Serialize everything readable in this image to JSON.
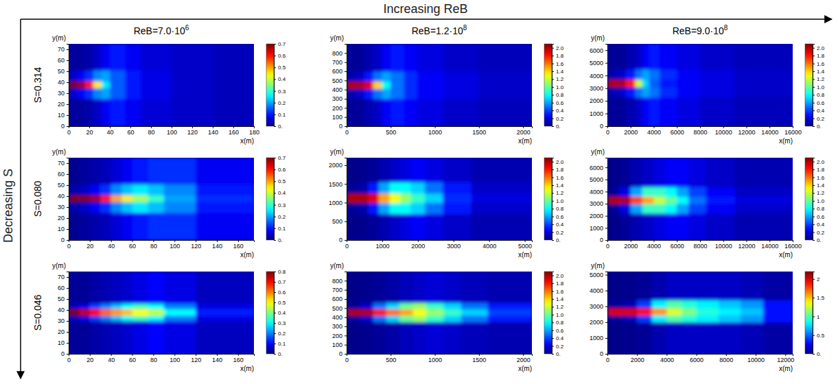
{
  "title": "Increasing ReB",
  "row_axis_label": "Decreasing S",
  "column_titles": [
    {
      "text": "ReB=7.0·10",
      "exponent": "6"
    },
    {
      "text": "ReB=1.2·10",
      "exponent": "8"
    },
    {
      "text": "ReB=9.0·10",
      "exponent": "8"
    }
  ],
  "row_titles": [
    "S=0.314",
    "S=0.080",
    "S=0.046"
  ],
  "chart_data": [
    {
      "type": "heatmap",
      "x_label": "x(m)",
      "y_label": "y(m)",
      "xlim": [
        0,
        180
      ],
      "xticks": [
        0,
        20,
        40,
        60,
        80,
        100,
        120,
        140,
        160,
        180
      ],
      "ylim": [
        0,
        75
      ],
      "yticks": [
        0,
        10,
        20,
        30,
        40,
        50,
        60,
        70
      ],
      "x_edges": [
        0,
        8,
        16,
        24,
        32,
        40,
        55,
        70,
        100,
        140,
        180
      ],
      "y_edges": [
        0,
        25,
        35,
        41,
        51,
        75
      ],
      "cells": [
        [
          0.02,
          0.02,
          0.03,
          0.05,
          0.08,
          0.1,
          0.08,
          0.06,
          0.05,
          0.04
        ],
        [
          0.05,
          0.08,
          0.12,
          0.18,
          0.2,
          0.15,
          0.1,
          0.07,
          0.05,
          0.04
        ],
        [
          0.7,
          0.68,
          0.6,
          0.45,
          0.25,
          0.15,
          0.1,
          0.07,
          0.05,
          0.04
        ],
        [
          0.05,
          0.08,
          0.12,
          0.18,
          0.2,
          0.15,
          0.1,
          0.07,
          0.05,
          0.04
        ],
        [
          0.02,
          0.02,
          0.03,
          0.05,
          0.08,
          0.1,
          0.08,
          0.06,
          0.05,
          0.04
        ]
      ],
      "colorbar_range": [
        0,
        0.7
      ],
      "colorbar_ticks": [
        {
          "value": 0,
          "label": "0."
        },
        0.1,
        0.2,
        0.3,
        0.4,
        0.5,
        0.6,
        0.7
      ]
    },
    {
      "type": "heatmap",
      "x_label": "x(m)",
      "y_label": "y(m)",
      "xlim": [
        0,
        2100
      ],
      "xticks": [
        0,
        500,
        1000,
        1500,
        2000
      ],
      "ylim": [
        0,
        900
      ],
      "yticks": [
        0,
        100,
        200,
        300,
        400,
        500,
        600,
        700,
        800
      ],
      "x_edges": [
        0,
        100,
        200,
        300,
        400,
        500,
        650,
        800,
        1100,
        1500,
        2100
      ],
      "y_edges": [
        0,
        300,
        410,
        490,
        600,
        900
      ],
      "cells": [
        [
          0.05,
          0.05,
          0.1,
          0.15,
          0.25,
          0.3,
          0.25,
          0.2,
          0.15,
          0.12
        ],
        [
          0.1,
          0.15,
          0.3,
          0.5,
          0.6,
          0.5,
          0.35,
          0.25,
          0.2,
          0.15
        ],
        [
          2.0,
          2.0,
          1.9,
          1.4,
          0.8,
          0.5,
          0.35,
          0.25,
          0.2,
          0.15
        ],
        [
          0.1,
          0.15,
          0.3,
          0.5,
          0.6,
          0.5,
          0.35,
          0.25,
          0.2,
          0.15
        ],
        [
          0.05,
          0.05,
          0.1,
          0.15,
          0.25,
          0.3,
          0.25,
          0.2,
          0.15,
          0.12
        ]
      ],
      "colorbar_range": [
        0,
        2.1
      ],
      "colorbar_ticks": [
        {
          "value": 0,
          "label": "0."
        },
        0.2,
        0.4,
        0.6,
        0.8,
        {
          "value": 1,
          "label": "1.0"
        },
        1.2,
        1.4,
        1.6,
        1.8,
        {
          "value": 2,
          "label": "2.0"
        }
      ]
    },
    {
      "type": "heatmap",
      "x_label": "x(m)",
      "y_label": "y(m)",
      "xlim": [
        0,
        16000
      ],
      "xticks": [
        0,
        2000,
        4000,
        6000,
        8000,
        10000,
        12000,
        14000,
        16000
      ],
      "ylim": [
        0,
        6500
      ],
      "yticks": [
        0,
        1000,
        2000,
        3000,
        4000,
        5000,
        6000
      ],
      "x_edges": [
        0,
        800,
        1600,
        2400,
        3000,
        3600,
        4500,
        6000,
        8000,
        11000,
        16000
      ],
      "y_edges": [
        0,
        2300,
        3100,
        3700,
        4500,
        6500
      ],
      "cells": [
        [
          0.05,
          0.05,
          0.1,
          0.15,
          0.25,
          0.3,
          0.25,
          0.2,
          0.15,
          0.12
        ],
        [
          0.1,
          0.15,
          0.3,
          0.5,
          0.6,
          0.5,
          0.35,
          0.25,
          0.2,
          0.15
        ],
        [
          2.0,
          2.0,
          1.8,
          1.2,
          0.7,
          0.45,
          0.3,
          0.25,
          0.2,
          0.15
        ],
        [
          0.1,
          0.15,
          0.3,
          0.5,
          0.6,
          0.5,
          0.35,
          0.25,
          0.2,
          0.15
        ],
        [
          0.05,
          0.05,
          0.1,
          0.15,
          0.25,
          0.3,
          0.25,
          0.2,
          0.15,
          0.12
        ]
      ],
      "colorbar_range": [
        0,
        2.1
      ],
      "colorbar_ticks": [
        {
          "value": 0,
          "label": "0."
        },
        0.2,
        0.4,
        0.6,
        0.8,
        {
          "value": 1,
          "label": "1.0"
        },
        1.2,
        1.4,
        1.6,
        1.8,
        {
          "value": 2,
          "label": "2.0"
        }
      ]
    },
    {
      "type": "heatmap",
      "x_label": "x(m)",
      "y_label": "y(m)",
      "xlim": [
        0,
        175
      ],
      "xticks": [
        0,
        20,
        40,
        60,
        80,
        100,
        120,
        140,
        160
      ],
      "ylim": [
        0,
        75
      ],
      "yticks": [
        0,
        10,
        20,
        30,
        40,
        50,
        60,
        70
      ],
      "x_edges": [
        0,
        10,
        20,
        30,
        40,
        50,
        60,
        75,
        90,
        120,
        175
      ],
      "y_edges": [
        0,
        25,
        35,
        41,
        51,
        75
      ],
      "cells": [
        [
          0.01,
          0.02,
          0.03,
          0.04,
          0.06,
          0.08,
          0.1,
          0.12,
          0.12,
          0.08
        ],
        [
          0.03,
          0.05,
          0.08,
          0.12,
          0.18,
          0.22,
          0.25,
          0.22,
          0.18,
          0.1
        ],
        [
          0.7,
          0.7,
          0.68,
          0.6,
          0.5,
          0.45,
          0.38,
          0.3,
          0.2,
          0.12
        ],
        [
          0.03,
          0.05,
          0.08,
          0.12,
          0.18,
          0.22,
          0.25,
          0.22,
          0.18,
          0.1
        ],
        [
          0.01,
          0.02,
          0.03,
          0.04,
          0.06,
          0.08,
          0.1,
          0.12,
          0.12,
          0.08
        ]
      ],
      "colorbar_range": [
        0,
        0.7
      ],
      "colorbar_ticks": [
        {
          "value": 0,
          "label": "0."
        },
        0.1,
        0.2,
        0.3,
        0.4,
        0.5,
        0.6,
        0.7
      ]
    },
    {
      "type": "heatmap",
      "x_label": "x(m)",
      "y_label": "y(m)",
      "xlim": [
        0,
        5200
      ],
      "xticks": [
        0,
        1000,
        2000,
        3000,
        4000,
        5000
      ],
      "ylim": [
        0,
        2200
      ],
      "yticks": [
        0,
        500,
        1000,
        1500,
        2000
      ],
      "x_edges": [
        0,
        300,
        600,
        900,
        1200,
        1500,
        1800,
        2200,
        2700,
        3500,
        5200
      ],
      "y_edges": [
        0,
        700,
        1000,
        1250,
        1550,
        2200
      ],
      "cells": [
        [
          0.02,
          0.03,
          0.05,
          0.1,
          0.15,
          0.2,
          0.25,
          0.2,
          0.15,
          0.1
        ],
        [
          0.05,
          0.08,
          0.3,
          0.6,
          0.8,
          0.8,
          0.7,
          0.5,
          0.3,
          0.15
        ],
        [
          2.0,
          2.0,
          1.9,
          1.5,
          1.3,
          1.1,
          0.9,
          0.7,
          0.35,
          0.2
        ],
        [
          0.05,
          0.08,
          0.3,
          0.6,
          0.8,
          0.8,
          0.7,
          0.5,
          0.3,
          0.15
        ],
        [
          0.02,
          0.03,
          0.05,
          0.1,
          0.15,
          0.2,
          0.25,
          0.2,
          0.15,
          0.1
        ]
      ],
      "colorbar_range": [
        0,
        2.1
      ],
      "colorbar_ticks": [
        {
          "value": 0,
          "label": "0."
        },
        0.2,
        0.4,
        0.6,
        0.8,
        {
          "value": 1,
          "label": "1.0"
        },
        1.2,
        1.4,
        1.6,
        1.8,
        {
          "value": 2,
          "label": "2.0"
        }
      ]
    },
    {
      "type": "heatmap",
      "x_label": "x(m)",
      "y_label": "y(m)",
      "xlim": [
        0,
        16000
      ],
      "xticks": [
        0,
        2000,
        4000,
        6000,
        8000,
        10000,
        12000,
        14000,
        16000
      ],
      "ylim": [
        0,
        6800
      ],
      "yticks": [
        0,
        1000,
        2000,
        3000,
        4000,
        5000,
        6000
      ],
      "x_edges": [
        0,
        1000,
        2000,
        3000,
        4000,
        5000,
        6000,
        7000,
        8500,
        11000,
        16000
      ],
      "y_edges": [
        0,
        2200,
        3000,
        3600,
        4400,
        6800
      ],
      "cells": [
        [
          0.02,
          0.05,
          0.1,
          0.15,
          0.2,
          0.25,
          0.25,
          0.2,
          0.15,
          0.1
        ],
        [
          0.05,
          0.2,
          0.6,
          0.9,
          0.9,
          0.8,
          0.6,
          0.4,
          0.25,
          0.15
        ],
        [
          2.0,
          2.0,
          1.7,
          1.5,
          1.2,
          1.0,
          0.8,
          0.5,
          0.3,
          0.2
        ],
        [
          0.05,
          0.2,
          0.6,
          0.9,
          0.9,
          0.8,
          0.6,
          0.4,
          0.25,
          0.15
        ],
        [
          0.02,
          0.05,
          0.1,
          0.15,
          0.2,
          0.25,
          0.25,
          0.2,
          0.15,
          0.1
        ]
      ],
      "colorbar_range": [
        0,
        2.1
      ],
      "colorbar_ticks": [
        {
          "value": 0,
          "label": "0."
        },
        0.2,
        0.4,
        0.6,
        0.8,
        {
          "value": 1,
          "label": "1.0"
        },
        1.2,
        1.4,
        1.6,
        1.8,
        {
          "value": 2,
          "label": "2.0"
        }
      ]
    },
    {
      "type": "heatmap",
      "x_label": "x(m)",
      "y_label": "y(m)",
      "xlim": [
        0,
        175
      ],
      "xticks": [
        0,
        20,
        40,
        60,
        80,
        100,
        120,
        140,
        160
      ],
      "ylim": [
        0,
        75
      ],
      "yticks": [
        0,
        10,
        20,
        30,
        40,
        50,
        60,
        70
      ],
      "x_edges": [
        0,
        10,
        20,
        30,
        40,
        50,
        60,
        75,
        90,
        120,
        175
      ],
      "y_edges": [
        0,
        30,
        35,
        41,
        46,
        75
      ],
      "cells": [
        [
          0.02,
          0.02,
          0.03,
          0.04,
          0.05,
          0.06,
          0.08,
          0.1,
          0.08,
          0.05
        ],
        [
          0.05,
          0.08,
          0.15,
          0.2,
          0.25,
          0.3,
          0.35,
          0.3,
          0.2,
          0.08
        ],
        [
          0.8,
          0.75,
          0.7,
          0.62,
          0.58,
          0.55,
          0.5,
          0.45,
          0.3,
          0.12
        ],
        [
          0.05,
          0.08,
          0.15,
          0.2,
          0.25,
          0.3,
          0.35,
          0.3,
          0.2,
          0.08
        ],
        [
          0.02,
          0.02,
          0.03,
          0.04,
          0.05,
          0.06,
          0.08,
          0.1,
          0.08,
          0.05
        ]
      ],
      "colorbar_range": [
        0,
        0.8
      ],
      "colorbar_ticks": [
        {
          "value": 0,
          "label": "0."
        },
        0.1,
        0.2,
        0.3,
        0.4,
        0.5,
        0.6,
        0.7,
        0.8
      ]
    },
    {
      "type": "heatmap",
      "x_label": "x(m)",
      "y_label": "y(m)",
      "xlim": [
        0,
        2100
      ],
      "xticks": [
        0,
        500,
        1000,
        1500,
        2000
      ],
      "ylim": [
        0,
        900
      ],
      "yticks": [
        0,
        100,
        200,
        300,
        400,
        500,
        600,
        700,
        800
      ],
      "x_edges": [
        0,
        150,
        300,
        450,
        600,
        750,
        900,
        1100,
        1300,
        1600,
        2100
      ],
      "y_edges": [
        0,
        350,
        420,
        490,
        560,
        900
      ],
      "cells": [
        [
          0.02,
          0.03,
          0.05,
          0.08,
          0.12,
          0.15,
          0.18,
          0.15,
          0.12,
          0.1
        ],
        [
          0.05,
          0.15,
          0.5,
          0.7,
          1.0,
          1.1,
          0.9,
          0.7,
          0.5,
          0.3
        ],
        [
          2.0,
          2.0,
          1.8,
          1.6,
          1.5,
          1.3,
          1.1,
          0.9,
          0.7,
          0.4
        ],
        [
          0.05,
          0.15,
          0.5,
          0.7,
          1.0,
          1.1,
          0.9,
          0.7,
          0.5,
          0.3
        ],
        [
          0.02,
          0.03,
          0.05,
          0.08,
          0.12,
          0.15,
          0.18,
          0.15,
          0.12,
          0.1
        ]
      ],
      "colorbar_range": [
        0,
        2.1
      ],
      "colorbar_ticks": [
        {
          "value": 0,
          "label": "0."
        },
        0.2,
        0.4,
        0.6,
        0.8,
        {
          "value": 1,
          "label": "1.0"
        },
        1.2,
        1.4,
        1.6,
        1.8,
        {
          "value": 2,
          "label": "2.0"
        }
      ]
    },
    {
      "type": "heatmap",
      "x_label": "x(m)",
      "y_label": "y(m)",
      "xlim": [
        0,
        12500
      ],
      "xticks": [
        0,
        2000,
        4000,
        6000,
        8000,
        10000,
        12000
      ],
      "ylim": [
        0,
        5200
      ],
      "yticks": [
        0,
        1000,
        2000,
        3000,
        4000,
        5000
      ],
      "x_edges": [
        0,
        1000,
        2000,
        3000,
        4000,
        5000,
        6000,
        7500,
        9000,
        10500,
        12500
      ],
      "y_edges": [
        0,
        2000,
        2450,
        2900,
        3400,
        5200
      ],
      "cells": [
        [
          0.02,
          0.03,
          0.05,
          0.1,
          0.15,
          0.15,
          0.15,
          0.15,
          0.12,
          0.08
        ],
        [
          0.05,
          0.1,
          0.4,
          0.8,
          1.0,
          0.9,
          0.8,
          0.7,
          0.6,
          0.3
        ],
        [
          2.0,
          2.0,
          1.9,
          1.6,
          1.3,
          1.1,
          0.9,
          0.8,
          0.7,
          0.3
        ],
        [
          0.05,
          0.1,
          0.4,
          0.8,
          1.0,
          0.9,
          0.8,
          0.7,
          0.6,
          0.3
        ],
        [
          0.02,
          0.03,
          0.05,
          0.1,
          0.15,
          0.15,
          0.15,
          0.15,
          0.12,
          0.08
        ]
      ],
      "colorbar_range": [
        0,
        2.2
      ],
      "colorbar_ticks": [
        {
          "value": 0,
          "label": "0."
        },
        0.5,
        1,
        1.5,
        2
      ]
    }
  ]
}
